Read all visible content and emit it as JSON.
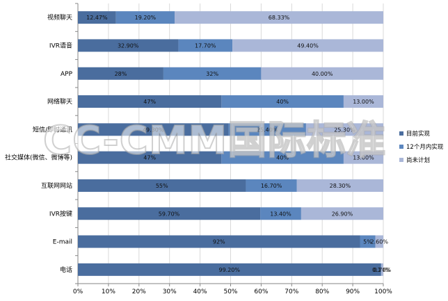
{
  "watermark": {
    "text": "CC-CMM国际标准"
  },
  "chart_data": {
    "type": "bar",
    "orientation": "horizontal",
    "stacked": "percent",
    "categories": [
      "视频聊天",
      "IVR语音",
      "APP",
      "网络聊天",
      "短信/即时通讯",
      "社交媒体(微信、微博等)",
      "互联网网站",
      "IVR按键",
      "E-mail",
      "电话"
    ],
    "series": [
      {
        "name": "目前实现",
        "color": "#4a6d9e",
        "values": [
          12.47,
          32.9,
          28,
          47,
          49.3,
          47,
          55,
          59.7,
          92,
          99.2
        ],
        "labels": [
          "12.47%",
          "32.90%",
          "28%",
          "47%",
          "49.30%",
          "47%",
          "55%",
          "59.70%",
          "92%",
          "99.20%"
        ]
      },
      {
        "name": "12个月内实现",
        "color": "#5b86be",
        "values": [
          19.2,
          17.7,
          32,
          40,
          25.4,
          40,
          16.7,
          13.4,
          5,
          0.1
        ],
        "labels": [
          "19.20%",
          "17.70%",
          "32%",
          "40%",
          "25.40%",
          "40%",
          "16.70%",
          "13.40%",
          "5%",
          "0.10%"
        ]
      },
      {
        "name": "尚未计划",
        "color": "#aab7d8",
        "values": [
          68.33,
          49.4,
          40.0,
          13.0,
          25.3,
          13.0,
          28.3,
          26.9,
          2.6,
          0.7
        ],
        "labels": [
          "68.33%",
          "49.40%",
          "40.00%",
          "13.00%",
          "25.30%",
          "13.00%",
          "28.30%",
          "26.90%",
          "2.60%",
          "0.70%"
        ]
      }
    ],
    "x_ticks": [
      "0%",
      "10%",
      "20%",
      "30%",
      "40%",
      "50%",
      "60%",
      "70%",
      "80%",
      "90%",
      "100%"
    ],
    "xlim": [
      0,
      100
    ],
    "grid": true,
    "legend_position": "right"
  }
}
